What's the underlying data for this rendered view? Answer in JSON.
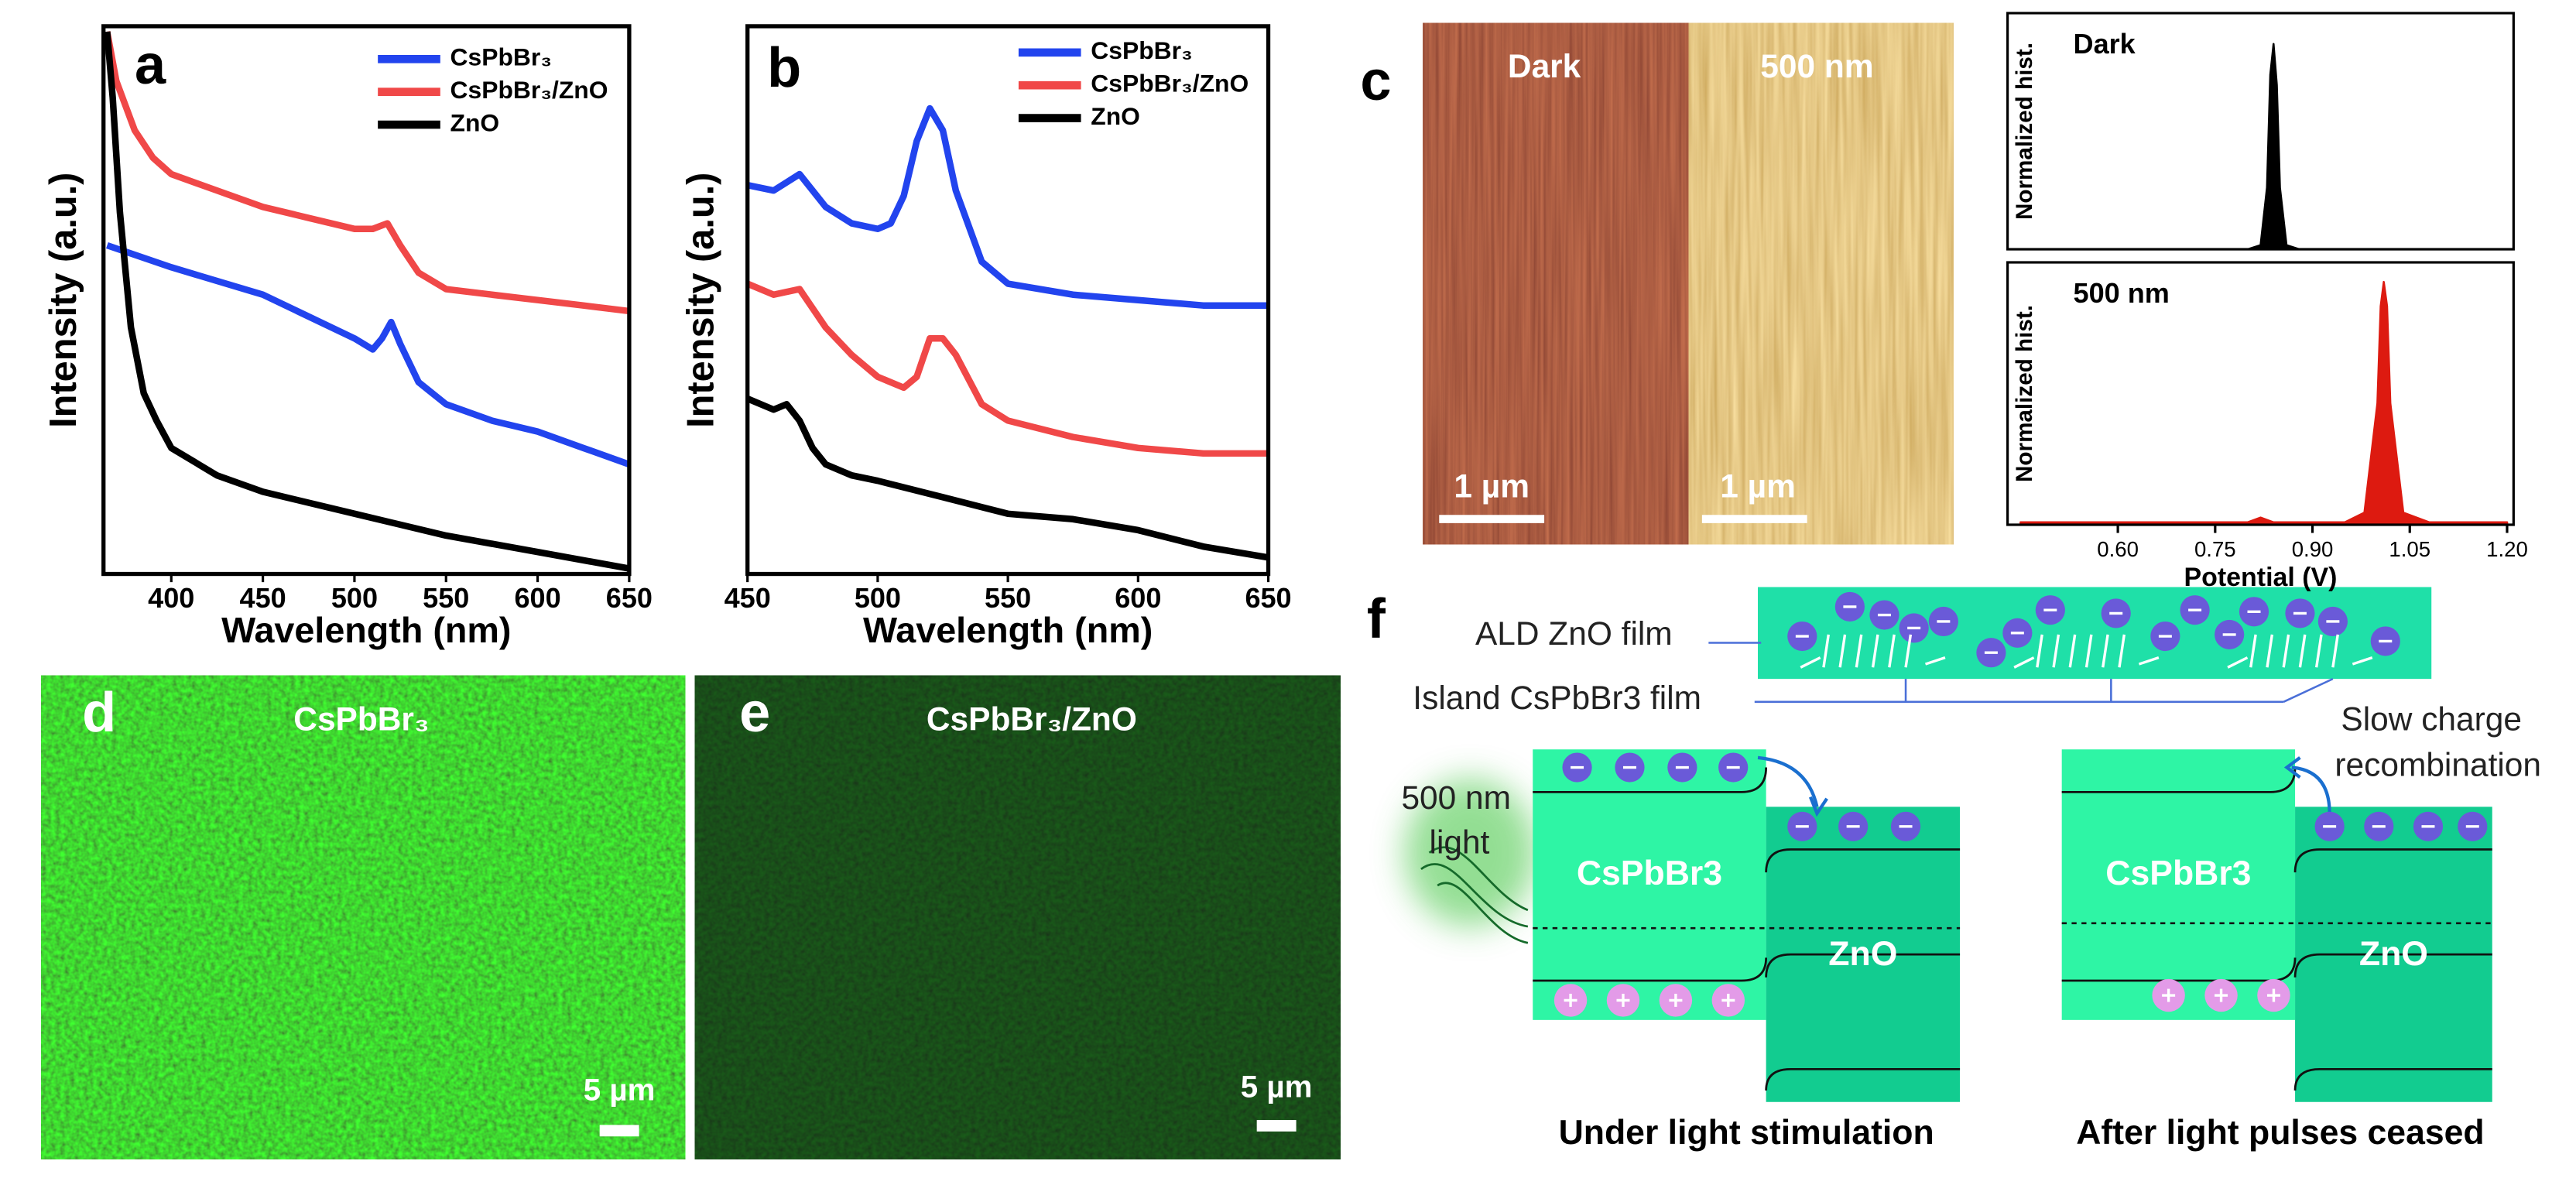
{
  "panel_labels": [
    "a",
    "b",
    "c",
    "d",
    "e",
    "f"
  ],
  "chart_data": [
    {
      "type": "line",
      "xlabel": "Wavelength (nm)",
      "ylabel": "Intensity (a.u.)",
      "xlim": [
        363,
        650
      ],
      "xticks": [
        400,
        450,
        500,
        550,
        600,
        650
      ],
      "ylim": [
        0,
        1
      ],
      "series": [
        {
          "name": "CsPbBr₃",
          "color": "#2244ee",
          "x": [
            365,
            400,
            450,
            500,
            510,
            515,
            520,
            525,
            535,
            550,
            575,
            600,
            625,
            650
          ],
          "values": [
            0.6,
            0.56,
            0.51,
            0.43,
            0.41,
            0.43,
            0.46,
            0.42,
            0.35,
            0.31,
            0.28,
            0.26,
            0.23,
            0.2
          ]
        },
        {
          "name": "CsPbBr₃/ZnO",
          "color": "#f04848",
          "x": [
            365,
            370,
            380,
            390,
            400,
            425,
            450,
            475,
            500,
            510,
            518,
            525,
            535,
            550,
            575,
            600,
            625,
            650
          ],
          "values": [
            0.99,
            0.9,
            0.81,
            0.76,
            0.73,
            0.7,
            0.67,
            0.65,
            0.63,
            0.63,
            0.64,
            0.6,
            0.55,
            0.52,
            0.51,
            0.5,
            0.49,
            0.48
          ]
        },
        {
          "name": "ZnO",
          "color": "#000000",
          "x": [
            365,
            368,
            372,
            378,
            385,
            392,
            400,
            425,
            450,
            500,
            550,
            600,
            650
          ],
          "values": [
            0.99,
            0.87,
            0.66,
            0.45,
            0.33,
            0.28,
            0.23,
            0.18,
            0.15,
            0.11,
            0.07,
            0.04,
            0.01
          ]
        }
      ]
    },
    {
      "type": "line",
      "xlabel": "Wavelength (nm)",
      "ylabel": "Intensity (a.u.)",
      "xlim": [
        450,
        650
      ],
      "xticks": [
        450,
        500,
        550,
        600,
        650
      ],
      "ylim": [
        0,
        1
      ],
      "series": [
        {
          "name": "CsPbBr₃",
          "color": "#2244ee",
          "x": [
            450,
            460,
            470,
            480,
            490,
            500,
            505,
            510,
            515,
            520,
            525,
            530,
            540,
            550,
            575,
            600,
            625,
            650
          ],
          "values": [
            0.71,
            0.7,
            0.73,
            0.67,
            0.64,
            0.63,
            0.64,
            0.69,
            0.79,
            0.85,
            0.81,
            0.7,
            0.57,
            0.53,
            0.51,
            0.5,
            0.49,
            0.49
          ]
        },
        {
          "name": "CsPbBr₃/ZnO",
          "color": "#f04848",
          "x": [
            450,
            460,
            470,
            480,
            490,
            500,
            510,
            515,
            520,
            525,
            530,
            540,
            550,
            575,
            600,
            625,
            650
          ],
          "values": [
            0.53,
            0.51,
            0.52,
            0.45,
            0.4,
            0.36,
            0.34,
            0.36,
            0.43,
            0.43,
            0.4,
            0.31,
            0.28,
            0.25,
            0.23,
            0.22,
            0.22
          ]
        },
        {
          "name": "ZnO",
          "color": "#000000",
          "x": [
            450,
            460,
            465,
            470,
            475,
            480,
            490,
            500,
            525,
            550,
            575,
            600,
            625,
            650
          ],
          "values": [
            0.32,
            0.3,
            0.31,
            0.28,
            0.23,
            0.2,
            0.18,
            0.17,
            0.14,
            0.11,
            0.1,
            0.08,
            0.05,
            0.03
          ]
        }
      ]
    },
    {
      "type": "area",
      "title": "Dark",
      "ylabel": "Normalized hist.",
      "xlim": [
        0.43,
        1.21
      ],
      "ylim": [
        0,
        1.15
      ],
      "series": [
        {
          "color": "#000000",
          "x": [
            0.8,
            0.82,
            0.83,
            0.835,
            0.84,
            0.845,
            0.85,
            0.86,
            0.88
          ],
          "values": [
            0,
            0.02,
            0.3,
            0.85,
            1,
            0.8,
            0.3,
            0.02,
            0
          ]
        }
      ]
    },
    {
      "type": "area",
      "title": "500 nm",
      "ylabel": "Normalized hist.",
      "xlabel": "Potential (V)",
      "xlim": [
        0.43,
        1.21
      ],
      "ylim": [
        0,
        1.08
      ],
      "xticks": [
        {
          "value": 0.6,
          "label": "0.60"
        },
        {
          "value": 0.75,
          "label": "0.75"
        },
        {
          "value": 0.9,
          "label": "0.90"
        },
        {
          "value": 1.05,
          "label": "1.05"
        },
        {
          "value": 1.2,
          "label": "1.20"
        }
      ],
      "series": [
        {
          "color": "#dd1a10",
          "x": [
            0.45,
            0.7,
            0.8,
            0.82,
            0.84,
            0.95,
            0.98,
            1.0,
            1.005,
            1.01,
            1.015,
            1.02,
            1.04,
            1.08,
            1.2
          ],
          "values": [
            0.01,
            0.01,
            0.01,
            0.03,
            0.01,
            0.01,
            0.05,
            0.5,
            0.9,
            1,
            0.9,
            0.5,
            0.05,
            0.01,
            0.01
          ]
        }
      ]
    }
  ],
  "images": {
    "afm_dark": {
      "label": "Dark",
      "scale_bar": "1 µm"
    },
    "afm_light": {
      "label": "500 nm",
      "scale_bar": "1 µm"
    },
    "d": {
      "label": "CsPbBr₃",
      "scale_bar": "5 µm"
    },
    "e": {
      "label": "CsPbBr₃/ZnO",
      "scale_bar": "5 µm"
    }
  },
  "diagram": {
    "film_label": "ALD ZnO film",
    "island_label": "Island CsPbBr3 film",
    "light": [
      "500 nm",
      "light"
    ],
    "left": {
      "material_1": "CsPbBr3",
      "material_2": "ZnO",
      "caption": "Under light stimulation"
    },
    "right": {
      "material_1": "CsPbBr3",
      "material_2": "ZnO",
      "caption": "After light pulses ceased",
      "note": [
        "Slow charge",
        "recombination"
      ]
    }
  }
}
